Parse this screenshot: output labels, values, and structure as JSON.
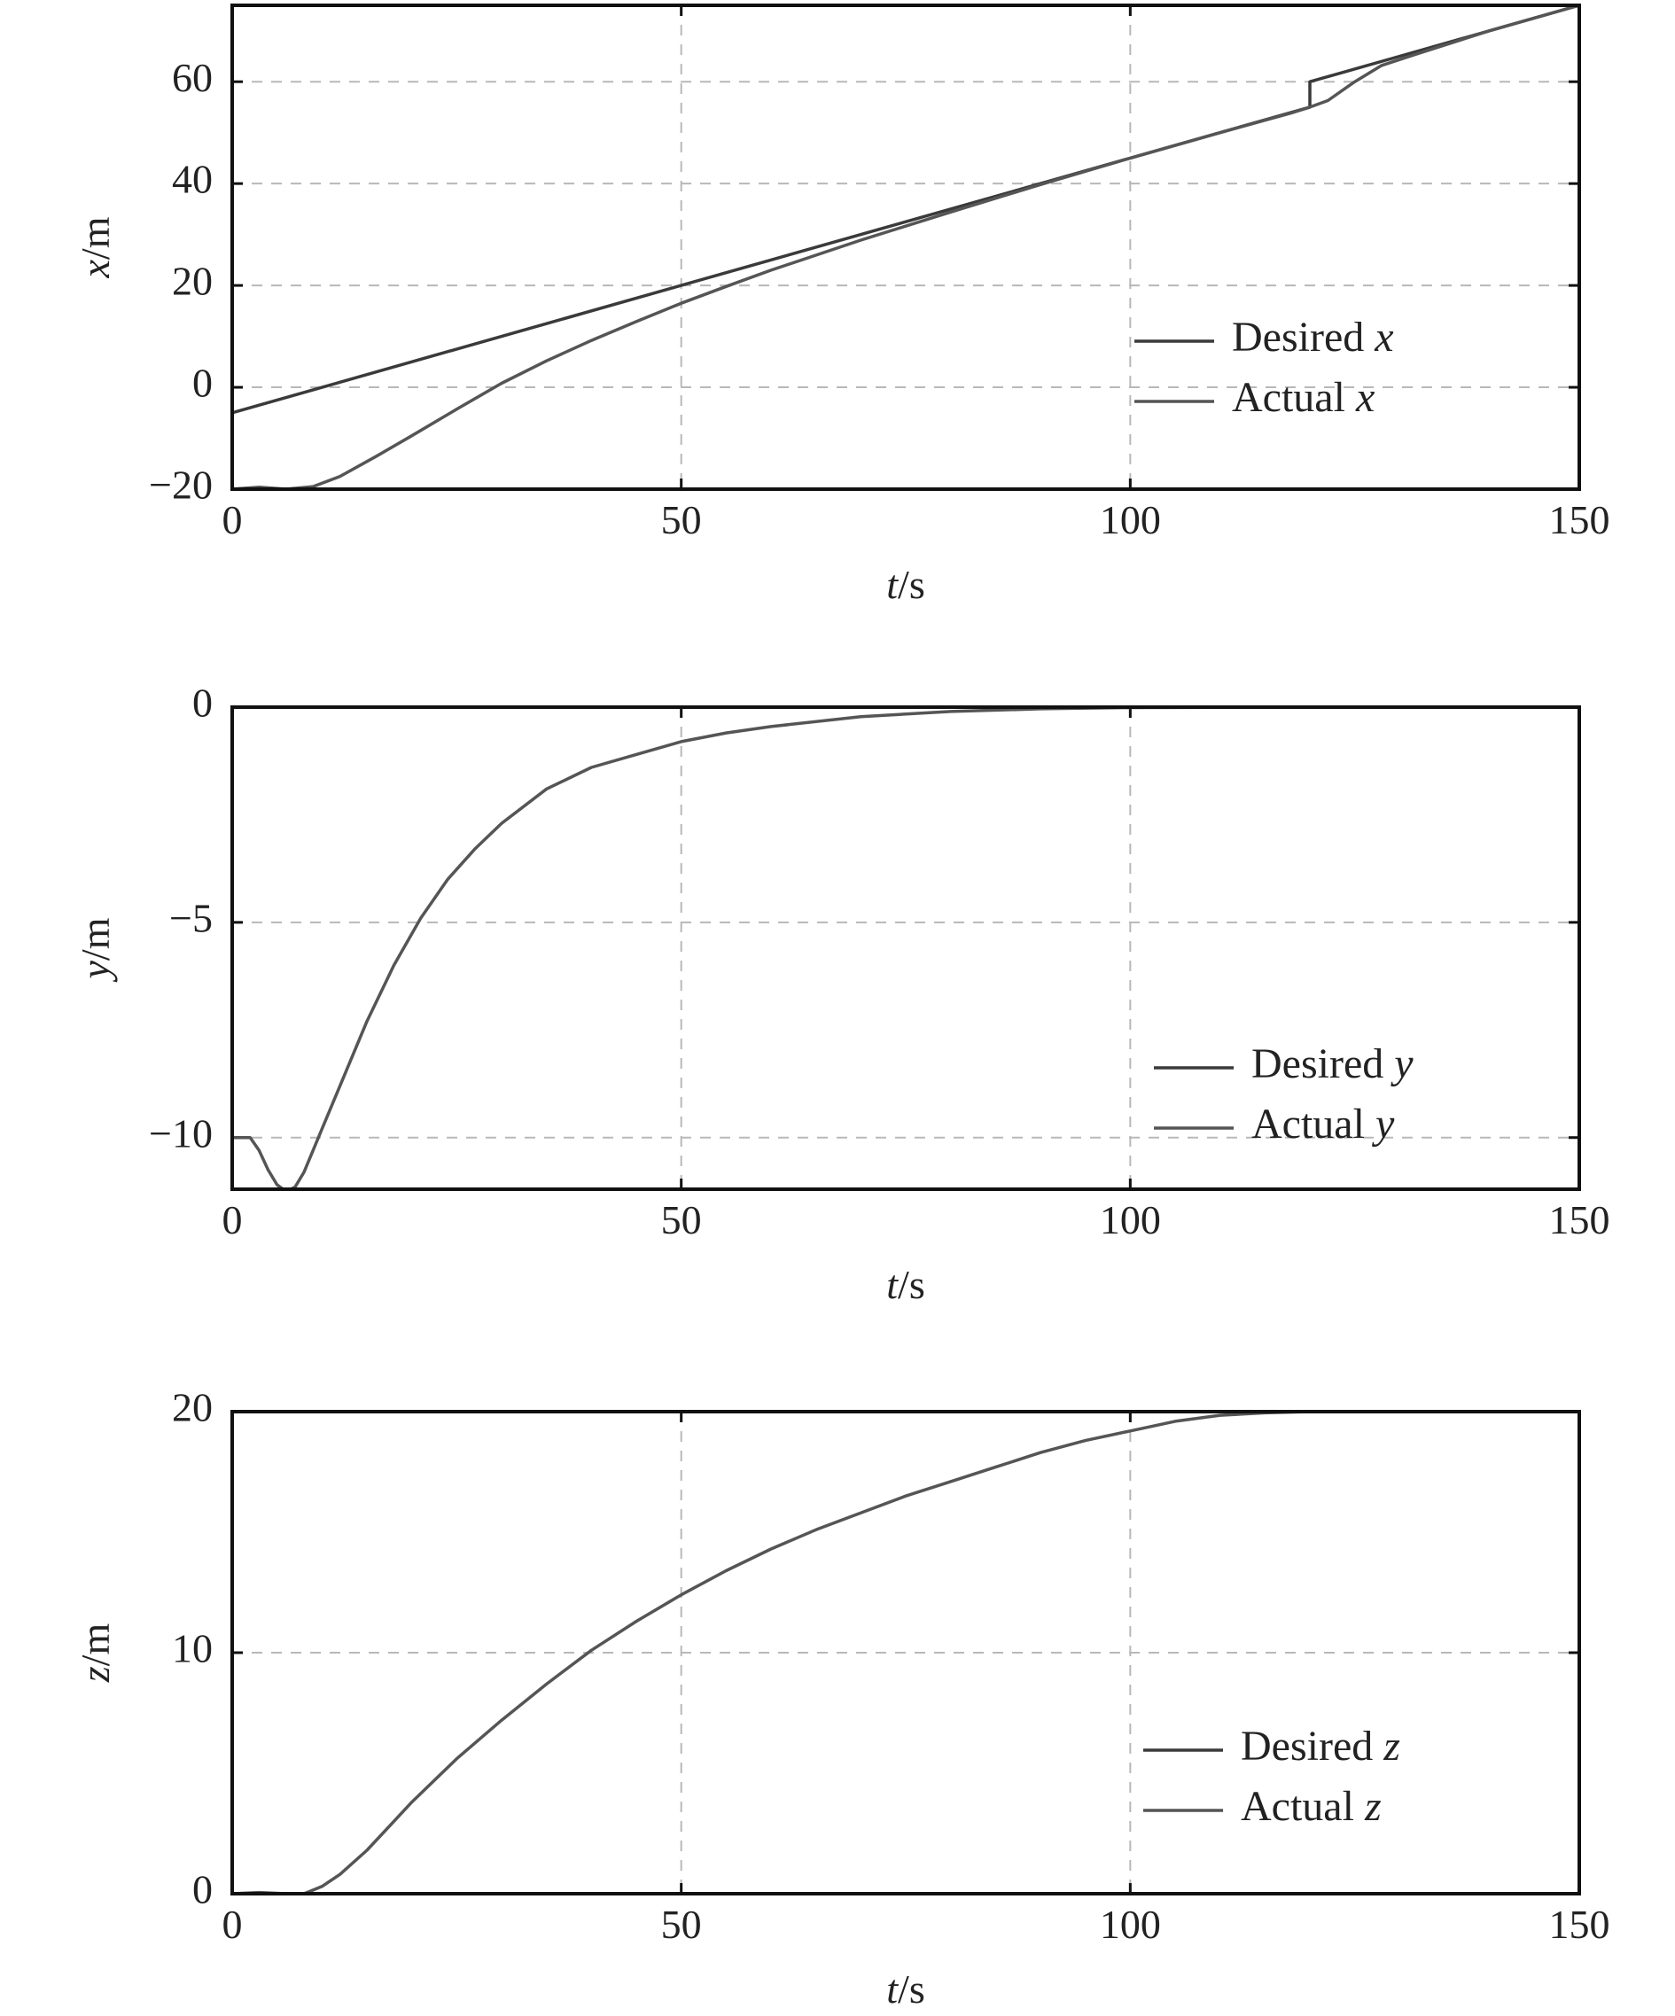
{
  "colors": {
    "desired": "#3a3a3a",
    "actual": "#555555",
    "grid": "#b8b8b8"
  },
  "chart_data": [
    {
      "type": "line",
      "xlabel": "t/s",
      "ylabel": "x/m",
      "xlim": [
        0,
        150
      ],
      "ylim": [
        -20,
        75
      ],
      "xticks": [
        0,
        50,
        100,
        150
      ],
      "yticks": [
        -20,
        0,
        20,
        40,
        60
      ],
      "xtick_labels": [
        "0",
        "50",
        "100",
        "150"
      ],
      "ytick_labels": [
        "−20",
        "0",
        "20",
        "40",
        "60"
      ],
      "grid": true,
      "legend": "right",
      "series": [
        {
          "name": "Desired x",
          "x": [
            0,
            120,
            120,
            130,
            150
          ],
          "y": [
            -5,
            55,
            60,
            65,
            75
          ]
        },
        {
          "name": "Actual x",
          "x": [
            0,
            3,
            6,
            9,
            12,
            16,
            20,
            25,
            30,
            35,
            40,
            45,
            50,
            55,
            60,
            70,
            80,
            90,
            100,
            110,
            118,
            120,
            122,
            125,
            128,
            132,
            140,
            150
          ],
          "y": [
            -20,
            -19.6,
            -20,
            -19.5,
            -17.5,
            -13.6,
            -9.5,
            -4.3,
            0.8,
            5.2,
            9.2,
            12.9,
            16.5,
            19.8,
            23,
            28.9,
            34.4,
            39.8,
            45,
            50,
            53.9,
            55,
            56.3,
            60,
            63.2,
            65.5,
            70,
            75
          ]
        }
      ]
    },
    {
      "type": "line",
      "xlabel": "t/s",
      "ylabel": "y/m",
      "xlim": [
        0,
        150
      ],
      "ylim": [
        -11.2,
        0
      ],
      "xticks": [
        0,
        50,
        100,
        150
      ],
      "yticks": [
        -10,
        -5,
        0
      ],
      "xtick_labels": [
        "0",
        "50",
        "100",
        "150"
      ],
      "ytick_labels": [
        "−10",
        "−5",
        "0"
      ],
      "grid": true,
      "legend": "right",
      "series": [
        {
          "name": "Desired y",
          "x": [
            0,
            150
          ],
          "y": [
            0,
            0
          ]
        },
        {
          "name": "Actual y",
          "x": [
            0,
            2,
            3,
            4,
            5,
            6,
            7,
            8,
            9,
            10,
            12,
            15,
            18,
            21,
            24,
            27,
            30,
            35,
            40,
            45,
            50,
            55,
            60,
            70,
            80,
            90,
            100,
            120,
            150
          ],
          "y": [
            -10,
            -10,
            -10.3,
            -10.75,
            -11.1,
            -11.25,
            -11.15,
            -10.8,
            -10.3,
            -9.8,
            -8.8,
            -7.3,
            -6,
            -4.9,
            -4,
            -3.3,
            -2.7,
            -1.9,
            -1.4,
            -1.1,
            -0.8,
            -0.6,
            -0.45,
            -0.22,
            -0.1,
            -0.04,
            -0.01,
            0,
            0
          ]
        }
      ]
    },
    {
      "type": "line",
      "xlabel": "t/s",
      "ylabel": "z/m",
      "xlim": [
        0,
        150
      ],
      "ylim": [
        0,
        20
      ],
      "xticks": [
        0,
        50,
        100,
        150
      ],
      "yticks": [
        0,
        10,
        20
      ],
      "xtick_labels": [
        "0",
        "50",
        "100",
        "150"
      ],
      "ytick_labels": [
        "0",
        "10",
        "20"
      ],
      "grid": true,
      "legend": "right",
      "series": [
        {
          "name": "Desired z",
          "x": [
            0,
            150
          ],
          "y": [
            20,
            20
          ]
        },
        {
          "name": "Actual z",
          "x": [
            0,
            3,
            6,
            8,
            10,
            12,
            15,
            18,
            20,
            25,
            30,
            35,
            40,
            45,
            50,
            55,
            60,
            65,
            70,
            75,
            80,
            85,
            90,
            95,
            100,
            105,
            110,
            115,
            120,
            125,
            130,
            150
          ],
          "y": [
            0,
            0.05,
            0,
            0,
            0.3,
            0.8,
            1.8,
            3,
            3.8,
            5.6,
            7.2,
            8.7,
            10.1,
            11.3,
            12.4,
            13.4,
            14.3,
            15.1,
            15.8,
            16.5,
            17.1,
            17.7,
            18.3,
            18.8,
            19.2,
            19.6,
            19.85,
            19.95,
            20,
            20,
            20,
            20
          ]
        }
      ]
    }
  ]
}
